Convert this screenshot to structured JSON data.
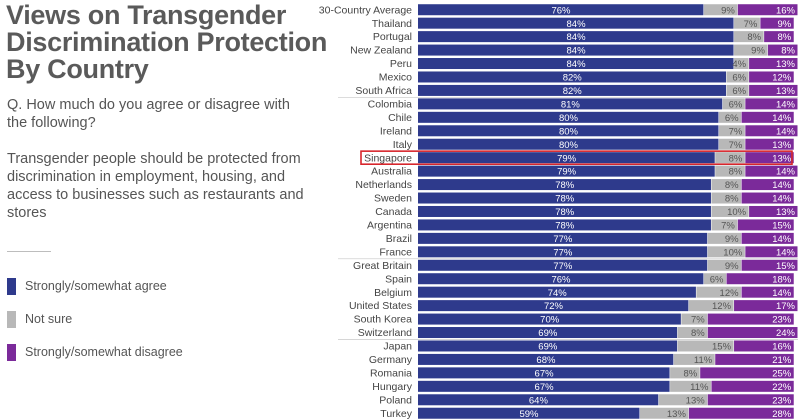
{
  "title_lines": [
    "Views on Transgender",
    "Discrimination Protection",
    "By Country"
  ],
  "question": "Q. How much do you agree or disagree with the following?",
  "statement": "Transgender people should be protected from discrimination in employment, housing, and access to businesses such as restaurants and stores",
  "legend": [
    {
      "label": "Strongly/somewhat agree",
      "color": "#2e3a8c",
      "icon": "agree-swatch"
    },
    {
      "label": "Not sure",
      "color": "#b8b8b8",
      "icon": "not-sure-swatch"
    },
    {
      "label": "Strongly/somewhat disagree",
      "color": "#7b2a9a",
      "icon": "disagree-swatch"
    }
  ],
  "highlight_color": "#d7262c",
  "chart_data": {
    "type": "bar",
    "orientation": "horizontal",
    "stacked": true,
    "xlim": [
      0,
      100
    ],
    "categories": [
      "30-Country Average",
      "Thailand",
      "Portugal",
      "New Zealand",
      "Peru",
      "Mexico",
      "South Africa",
      "Colombia",
      "Chile",
      "Ireland",
      "Italy",
      "Singapore",
      "Australia",
      "Netherlands",
      "Sweden",
      "Canada",
      "Argentina",
      "Brazil",
      "France",
      "Great Britain",
      "Spain",
      "Belgium",
      "United States",
      "South Korea",
      "Switzerland",
      "Japan",
      "Germany",
      "Romania",
      "Hungary",
      "Poland",
      "Turkey"
    ],
    "series": [
      {
        "name": "Strongly/somewhat agree",
        "color": "#2e3a8c",
        "values": [
          76,
          84,
          84,
          84,
          84,
          82,
          82,
          81,
          80,
          80,
          80,
          79,
          79,
          78,
          78,
          78,
          78,
          77,
          77,
          77,
          76,
          74,
          72,
          70,
          69,
          69,
          68,
          67,
          67,
          64,
          59
        ]
      },
      {
        "name": "Not sure",
        "color": "#b8b8b8",
        "values": [
          9,
          7,
          8,
          9,
          4,
          6,
          6,
          6,
          6,
          7,
          7,
          8,
          8,
          8,
          8,
          10,
          7,
          9,
          10,
          9,
          6,
          12,
          12,
          7,
          8,
          15,
          11,
          8,
          11,
          13,
          13
        ]
      },
      {
        "name": "Strongly/somewhat disagree",
        "color": "#7b2a9a",
        "values": [
          16,
          9,
          8,
          8,
          13,
          12,
          13,
          14,
          14,
          14,
          13,
          13,
          14,
          14,
          14,
          13,
          15,
          14,
          14,
          15,
          18,
          14,
          17,
          23,
          24,
          16,
          21,
          25,
          22,
          23,
          28
        ]
      }
    ],
    "highlighted_category": "Singapore",
    "group_breaks_after": [
      "South Africa",
      "France",
      "Switzerland"
    ]
  }
}
